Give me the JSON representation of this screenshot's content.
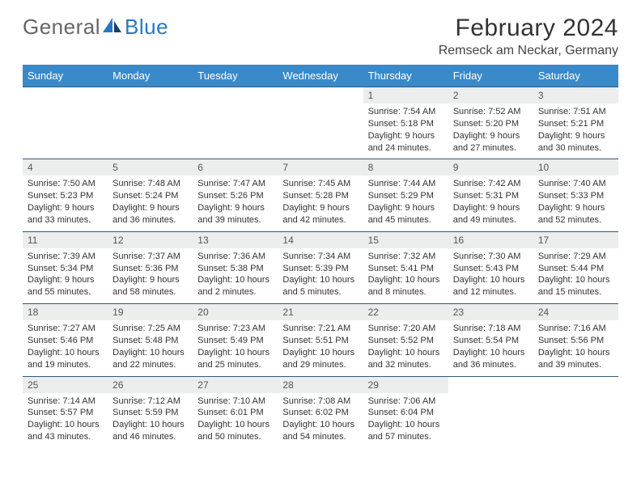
{
  "logo": {
    "text1": "General",
    "text2": "Blue"
  },
  "title": "February 2024",
  "subtitle": "Remseck am Neckar, Germany",
  "colors": {
    "header_bg": "#3a8ac9",
    "header_text": "#ffffff",
    "daynum_bg": "#eceded",
    "row_border": "#35597a",
    "body_text": "#333333",
    "logo_blue": "#2a78bf",
    "logo_gray": "#666666"
  },
  "typography": {
    "title_fontsize": 30,
    "subtitle_fontsize": 16,
    "header_fontsize": 13,
    "daynum_fontsize": 12,
    "cell_fontsize": 11
  },
  "weekdays": [
    "Sunday",
    "Monday",
    "Tuesday",
    "Wednesday",
    "Thursday",
    "Friday",
    "Saturday"
  ],
  "weeks": [
    [
      null,
      null,
      null,
      null,
      {
        "n": "1",
        "sr": "Sunrise: 7:54 AM",
        "ss": "Sunset: 5:18 PM",
        "dl": "Daylight: 9 hours and 24 minutes."
      },
      {
        "n": "2",
        "sr": "Sunrise: 7:52 AM",
        "ss": "Sunset: 5:20 PM",
        "dl": "Daylight: 9 hours and 27 minutes."
      },
      {
        "n": "3",
        "sr": "Sunrise: 7:51 AM",
        "ss": "Sunset: 5:21 PM",
        "dl": "Daylight: 9 hours and 30 minutes."
      }
    ],
    [
      {
        "n": "4",
        "sr": "Sunrise: 7:50 AM",
        "ss": "Sunset: 5:23 PM",
        "dl": "Daylight: 9 hours and 33 minutes."
      },
      {
        "n": "5",
        "sr": "Sunrise: 7:48 AM",
        "ss": "Sunset: 5:24 PM",
        "dl": "Daylight: 9 hours and 36 minutes."
      },
      {
        "n": "6",
        "sr": "Sunrise: 7:47 AM",
        "ss": "Sunset: 5:26 PM",
        "dl": "Daylight: 9 hours and 39 minutes."
      },
      {
        "n": "7",
        "sr": "Sunrise: 7:45 AM",
        "ss": "Sunset: 5:28 PM",
        "dl": "Daylight: 9 hours and 42 minutes."
      },
      {
        "n": "8",
        "sr": "Sunrise: 7:44 AM",
        "ss": "Sunset: 5:29 PM",
        "dl": "Daylight: 9 hours and 45 minutes."
      },
      {
        "n": "9",
        "sr": "Sunrise: 7:42 AM",
        "ss": "Sunset: 5:31 PM",
        "dl": "Daylight: 9 hours and 49 minutes."
      },
      {
        "n": "10",
        "sr": "Sunrise: 7:40 AM",
        "ss": "Sunset: 5:33 PM",
        "dl": "Daylight: 9 hours and 52 minutes."
      }
    ],
    [
      {
        "n": "11",
        "sr": "Sunrise: 7:39 AM",
        "ss": "Sunset: 5:34 PM",
        "dl": "Daylight: 9 hours and 55 minutes."
      },
      {
        "n": "12",
        "sr": "Sunrise: 7:37 AM",
        "ss": "Sunset: 5:36 PM",
        "dl": "Daylight: 9 hours and 58 minutes."
      },
      {
        "n": "13",
        "sr": "Sunrise: 7:36 AM",
        "ss": "Sunset: 5:38 PM",
        "dl": "Daylight: 10 hours and 2 minutes."
      },
      {
        "n": "14",
        "sr": "Sunrise: 7:34 AM",
        "ss": "Sunset: 5:39 PM",
        "dl": "Daylight: 10 hours and 5 minutes."
      },
      {
        "n": "15",
        "sr": "Sunrise: 7:32 AM",
        "ss": "Sunset: 5:41 PM",
        "dl": "Daylight: 10 hours and 8 minutes."
      },
      {
        "n": "16",
        "sr": "Sunrise: 7:30 AM",
        "ss": "Sunset: 5:43 PM",
        "dl": "Daylight: 10 hours and 12 minutes."
      },
      {
        "n": "17",
        "sr": "Sunrise: 7:29 AM",
        "ss": "Sunset: 5:44 PM",
        "dl": "Daylight: 10 hours and 15 minutes."
      }
    ],
    [
      {
        "n": "18",
        "sr": "Sunrise: 7:27 AM",
        "ss": "Sunset: 5:46 PM",
        "dl": "Daylight: 10 hours and 19 minutes."
      },
      {
        "n": "19",
        "sr": "Sunrise: 7:25 AM",
        "ss": "Sunset: 5:48 PM",
        "dl": "Daylight: 10 hours and 22 minutes."
      },
      {
        "n": "20",
        "sr": "Sunrise: 7:23 AM",
        "ss": "Sunset: 5:49 PM",
        "dl": "Daylight: 10 hours and 25 minutes."
      },
      {
        "n": "21",
        "sr": "Sunrise: 7:21 AM",
        "ss": "Sunset: 5:51 PM",
        "dl": "Daylight: 10 hours and 29 minutes."
      },
      {
        "n": "22",
        "sr": "Sunrise: 7:20 AM",
        "ss": "Sunset: 5:52 PM",
        "dl": "Daylight: 10 hours and 32 minutes."
      },
      {
        "n": "23",
        "sr": "Sunrise: 7:18 AM",
        "ss": "Sunset: 5:54 PM",
        "dl": "Daylight: 10 hours and 36 minutes."
      },
      {
        "n": "24",
        "sr": "Sunrise: 7:16 AM",
        "ss": "Sunset: 5:56 PM",
        "dl": "Daylight: 10 hours and 39 minutes."
      }
    ],
    [
      {
        "n": "25",
        "sr": "Sunrise: 7:14 AM",
        "ss": "Sunset: 5:57 PM",
        "dl": "Daylight: 10 hours and 43 minutes."
      },
      {
        "n": "26",
        "sr": "Sunrise: 7:12 AM",
        "ss": "Sunset: 5:59 PM",
        "dl": "Daylight: 10 hours and 46 minutes."
      },
      {
        "n": "27",
        "sr": "Sunrise: 7:10 AM",
        "ss": "Sunset: 6:01 PM",
        "dl": "Daylight: 10 hours and 50 minutes."
      },
      {
        "n": "28",
        "sr": "Sunrise: 7:08 AM",
        "ss": "Sunset: 6:02 PM",
        "dl": "Daylight: 10 hours and 54 minutes."
      },
      {
        "n": "29",
        "sr": "Sunrise: 7:06 AM",
        "ss": "Sunset: 6:04 PM",
        "dl": "Daylight: 10 hours and 57 minutes."
      },
      null,
      null
    ]
  ]
}
